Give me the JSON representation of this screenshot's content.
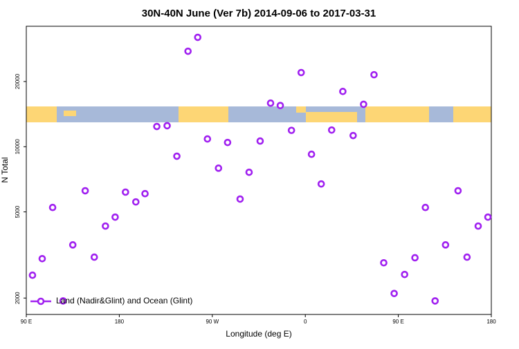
{
  "chart_data": {
    "type": "scatter",
    "title": "30N-40N June (Ver 7b)   2014-09-06 to 2017-03-31",
    "x_label": "Longitude (deg E)",
    "y_label": "N Total",
    "log_y": true,
    "legend_position": "lower left",
    "xlim": [
      90,
      540
    ],
    "ylim": [
      1680,
      36000
    ],
    "xticks": [
      {
        "value": 90,
        "label": "90 E"
      },
      {
        "value": 180,
        "label": "180"
      },
      {
        "value": 270,
        "label": "90 W"
      },
      {
        "value": 360,
        "label": "0"
      },
      {
        "value": 450,
        "label": "90 E"
      },
      {
        "value": 540,
        "label": "180"
      }
    ],
    "yticks": [
      2000,
      5000,
      10000,
      20000
    ],
    "series": [
      {
        "name": "Land (Nadir&Glint) and Ocean (Glint)",
        "color": "#a020f0",
        "x": [
          96,
          105.4,
          115.5,
          125.6,
          135,
          147,
          155.8,
          166.6,
          176,
          186,
          196,
          204.9,
          216.3,
          226.3,
          235.7,
          246.5,
          255.9,
          265.3,
          276,
          284.8,
          296.9,
          305.6,
          316.3,
          326.4,
          335.8,
          346.6,
          356,
          366,
          375.4,
          385.5,
          396.3,
          406.3,
          416.4,
          426.5,
          435.9,
          446,
          456.1,
          466.1,
          476.2,
          485.6,
          495.7,
          507.8,
          516.5,
          527.3,
          536.7
        ],
        "values": [
          2550,
          3040,
          5240,
          1940,
          3520,
          6260,
          3090,
          4300,
          4730,
          6170,
          5560,
          6070,
          12400,
          12500,
          9040,
          27600,
          32000,
          10860,
          7960,
          10460,
          5730,
          7620,
          10620,
          15900,
          15500,
          11900,
          22000,
          9230,
          6730,
          11940,
          18000,
          11260,
          15700,
          21500,
          2910,
          2100,
          2570,
          3070,
          5240,
          1940,
          3520,
          6260,
          3090,
          4300,
          4730
        ]
      }
    ]
  }
}
